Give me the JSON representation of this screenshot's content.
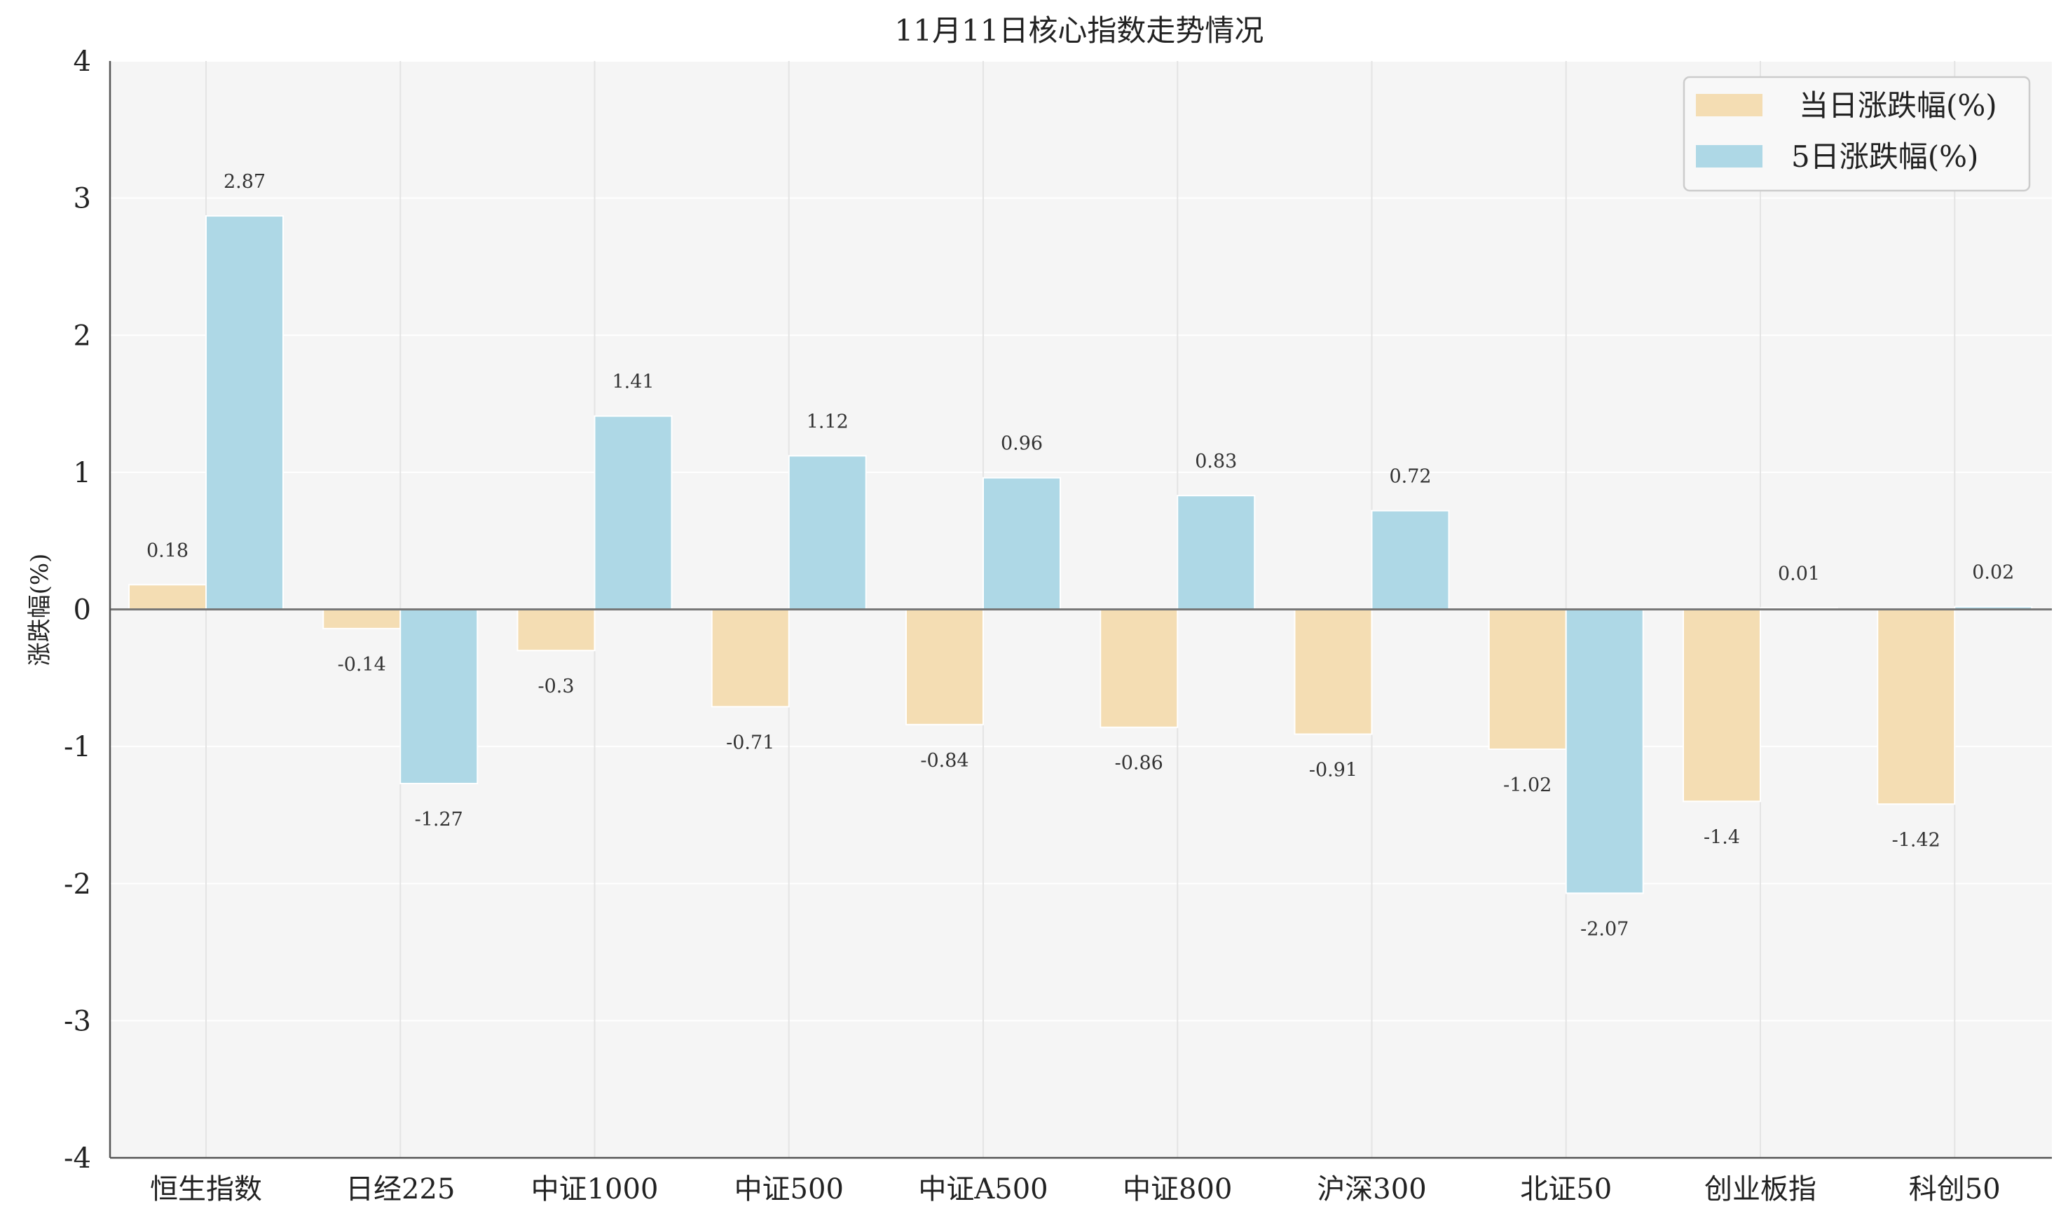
{
  "chart_data": {
    "type": "bar",
    "title": "11月11日核心指数走势情况",
    "xlabel": "",
    "ylabel": "涨跌幅(%)",
    "ylim": [
      -4,
      4
    ],
    "yticks": [
      4,
      3,
      2,
      1,
      0,
      -1,
      -2,
      -3,
      -4
    ],
    "grid": true,
    "legend_position": "top-right",
    "categories": [
      "恒生指数",
      "日经225",
      "中证1000",
      "中证500",
      "中证A500",
      "中证800",
      "沪深300",
      "北证50",
      "创业板指",
      "科创50"
    ],
    "series": [
      {
        "name": "当日涨跌幅(%)",
        "color": "#f4ddb3",
        "values": [
          0.18,
          -0.14,
          -0.3,
          -0.71,
          -0.84,
          -0.86,
          -0.91,
          -1.02,
          -1.4,
          -1.42
        ],
        "labels": [
          "0.18",
          "-0.14",
          "-0.3",
          "-0.71",
          "-0.84",
          "-0.86",
          "-0.91",
          "-1.02",
          "-1.4",
          "-1.42"
        ]
      },
      {
        "name": "5日涨跌幅(%)",
        "color": "#aed8e6",
        "values": [
          2.87,
          -1.27,
          1.41,
          1.12,
          0.96,
          0.83,
          0.72,
          -2.07,
          0.01,
          0.02
        ],
        "labels": [
          "2.87",
          "-1.27",
          "1.41",
          "1.12",
          "0.96",
          "0.83",
          "0.72",
          "-2.07",
          "0.01",
          "0.02"
        ]
      }
    ]
  }
}
